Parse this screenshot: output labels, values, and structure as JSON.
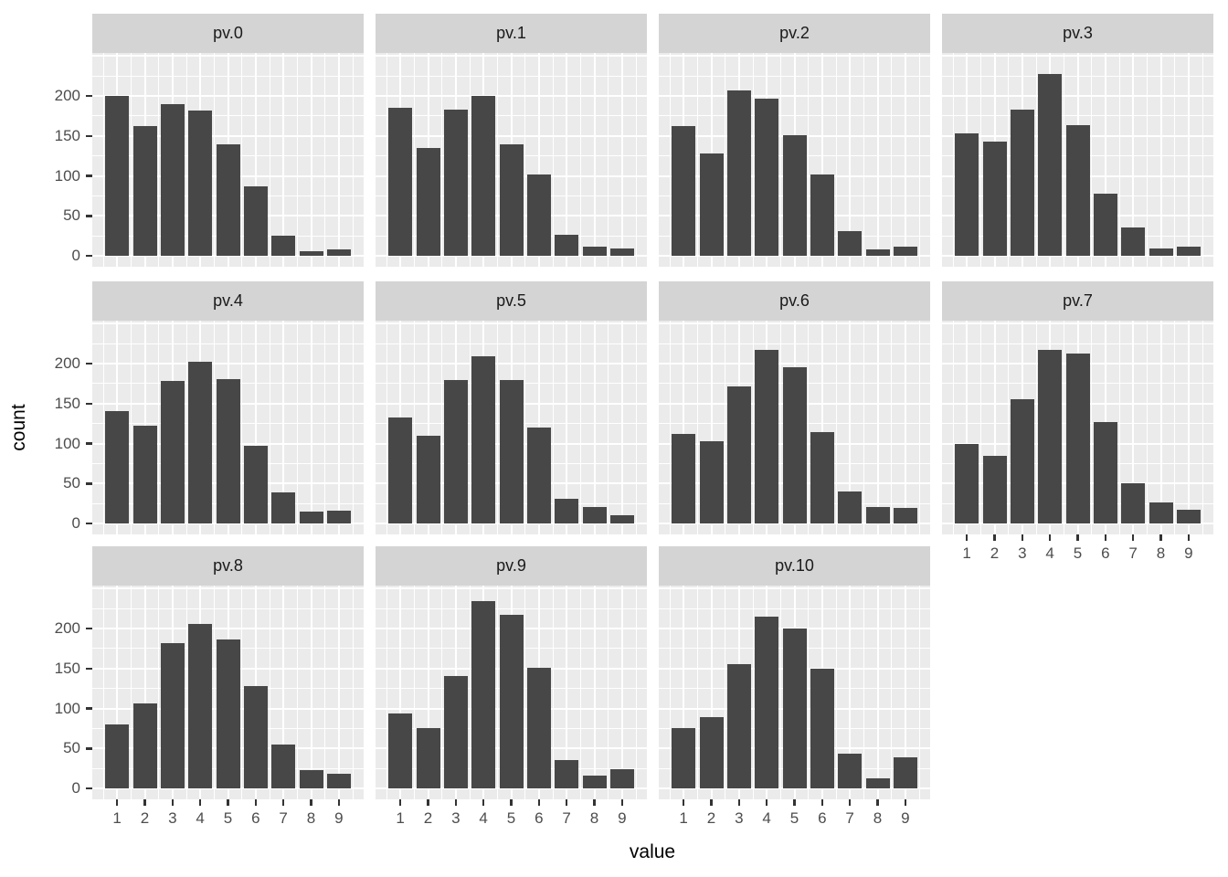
{
  "figure": {
    "x_axis_title": "value",
    "y_axis_title": "count"
  },
  "axes": {
    "y_tick_labels": [
      "0",
      "50",
      "100",
      "150",
      "200"
    ],
    "y_tick_values": [
      0,
      50,
      100,
      150,
      200
    ],
    "x_tick_labels": [
      "1",
      "2",
      "3",
      "4",
      "5",
      "6",
      "7",
      "8",
      "9"
    ],
    "x_tick_values": [
      1,
      2,
      3,
      4,
      5,
      6,
      7,
      8,
      9
    ]
  },
  "style": {
    "bar_color": "#474747",
    "panel_background": "#EBEBEB",
    "grid_color": "#FFFFFF",
    "strip_background": "#D4D4D4",
    "strip_text_color": "#1A1A1A",
    "axis_text_color": "#4D4D4D",
    "tick_mark_color": "#333333"
  },
  "chart_data": {
    "type": "bar",
    "faceted": true,
    "facet_layout": {
      "rows": 3,
      "cols": 4
    },
    "x": [
      1,
      2,
      3,
      4,
      5,
      6,
      7,
      8,
      9
    ],
    "xlabel": "value",
    "ylabel": "count",
    "ylim": [
      0,
      250
    ],
    "y_major_gridlines": [
      0,
      50,
      100,
      150,
      200,
      250
    ],
    "y_minor_gridlines": [
      25,
      75,
      125,
      175,
      225
    ],
    "facets": [
      {
        "label": "pv.0",
        "values": [
          200,
          162,
          190,
          182,
          139,
          87,
          25,
          6,
          8
        ]
      },
      {
        "label": "pv.1",
        "values": [
          185,
          135,
          183,
          200,
          140,
          102,
          26,
          12,
          9
        ]
      },
      {
        "label": "pv.2",
        "values": [
          162,
          128,
          207,
          197,
          151,
          102,
          31,
          8,
          11
        ]
      },
      {
        "label": "pv.3",
        "values": [
          153,
          143,
          183,
          227,
          164,
          78,
          35,
          9,
          11
        ]
      },
      {
        "label": "pv.4",
        "values": [
          141,
          122,
          178,
          202,
          181,
          97,
          39,
          15,
          16
        ]
      },
      {
        "label": "pv.5",
        "values": [
          133,
          110,
          179,
          209,
          179,
          120,
          31,
          21,
          10
        ]
      },
      {
        "label": "pv.6",
        "values": [
          112,
          103,
          171,
          217,
          195,
          114,
          40,
          21,
          20
        ]
      },
      {
        "label": "pv.7",
        "values": [
          100,
          85,
          156,
          217,
          213,
          127,
          50,
          26,
          17
        ]
      },
      {
        "label": "pv.8",
        "values": [
          80,
          106,
          182,
          206,
          186,
          128,
          55,
          23,
          18
        ]
      },
      {
        "label": "pv.9",
        "values": [
          94,
          76,
          141,
          234,
          217,
          151,
          36,
          16,
          24
        ]
      },
      {
        "label": "pv.10",
        "values": [
          76,
          89,
          155,
          215,
          200,
          150,
          44,
          13,
          39
        ]
      }
    ]
  }
}
